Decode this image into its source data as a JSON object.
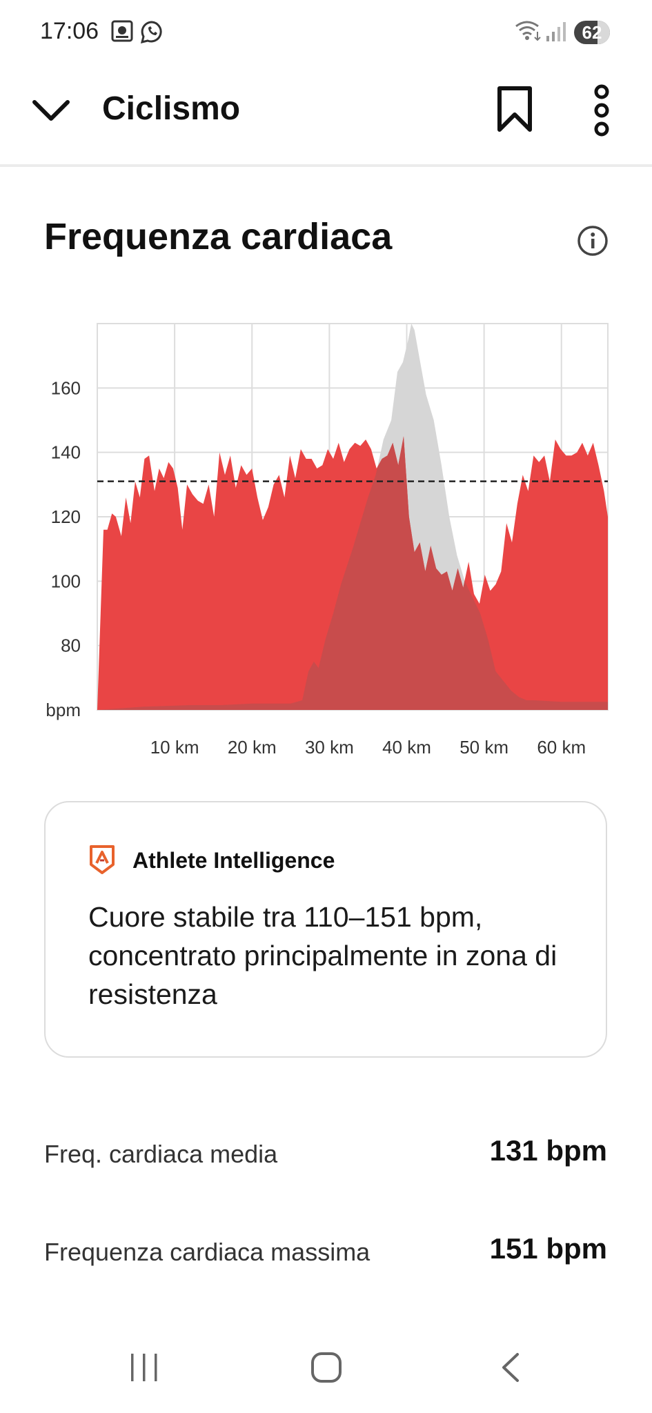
{
  "status_bar": {
    "time": "17:06",
    "battery": "62",
    "icons": [
      "image-notification-icon",
      "whatsapp-icon",
      "wifi-icon",
      "signal-icon",
      "battery-icon"
    ]
  },
  "app_bar": {
    "title": "Ciclismo",
    "icons": [
      "chevron-down-icon",
      "bookmark-icon",
      "more-vertical-icon"
    ]
  },
  "section": {
    "title": "Frequenza cardiaca",
    "info_icon": "info-icon"
  },
  "chart_data": {
    "type": "area",
    "title": "",
    "xlabel": "",
    "ylabel": "bpm",
    "x_unit": "km",
    "xlim": [
      0,
      66
    ],
    "ylim": [
      60,
      180
    ],
    "x_ticks": [
      "10 km",
      "20 km",
      "30 km",
      "40 km",
      "50 km",
      "60 km"
    ],
    "y_ticks": [
      "bpm",
      "80",
      "100",
      "120",
      "140",
      "160"
    ],
    "grid": true,
    "reference_line": {
      "value": 131,
      "style": "dashed"
    },
    "colors": {
      "hr_fill": "#e94545",
      "elevation_fill": "#d6d6d6",
      "overlap_fill": "#c84c4c",
      "grid": "#dddddd",
      "axis_text": "#333333"
    },
    "series": [
      {
        "key": "hr",
        "x": [
          0,
          0.8,
          1.3,
          1.9,
          2.4,
          3.1,
          3.7,
          4.3,
          4.9,
          5.5,
          6.1,
          6.7,
          7.4,
          8.0,
          8.6,
          9.2,
          9.8,
          10.4,
          11.0,
          11.6,
          12.3,
          13.0,
          13.7,
          14.4,
          15.1,
          15.8,
          16.5,
          17.2,
          17.9,
          18.6,
          19.3,
          20.0,
          20.7,
          21.4,
          22.1,
          22.8,
          23.5,
          24.2,
          24.9,
          25.6,
          26.3,
          27.0,
          27.7,
          28.4,
          29.1,
          29.8,
          30.5,
          31.2,
          31.9,
          32.6,
          33.3,
          34.0,
          34.7,
          35.4,
          36.1,
          36.8,
          37.5,
          38.2,
          38.9,
          39.6,
          40.3,
          41.0,
          41.7,
          42.4,
          43.1,
          43.8,
          44.5,
          45.2,
          45.9,
          46.6,
          47.3,
          48.0,
          48.7,
          49.4,
          50.1,
          50.8,
          51.5,
          52.2,
          52.9,
          53.6,
          54.3,
          55.0,
          55.7,
          56.4,
          57.1,
          57.8,
          58.5,
          59.2,
          59.9,
          60.6,
          61.3,
          62.0,
          62.7,
          63.4,
          64.1,
          64.8,
          65.5,
          66.0
        ],
        "values": [
          60,
          116,
          116,
          121,
          120,
          114,
          126,
          118,
          131,
          126,
          138,
          139,
          128,
          135,
          132,
          137,
          135,
          129,
          116,
          130,
          127,
          125,
          124,
          130,
          120,
          140,
          133,
          139,
          129,
          136,
          133,
          135,
          126,
          119,
          123,
          130,
          133,
          126,
          139,
          132,
          141,
          138,
          138,
          135,
          136,
          141,
          138,
          143,
          137,
          141,
          143,
          142,
          144,
          141,
          135,
          138,
          139,
          143,
          136,
          145,
          120,
          109,
          112,
          103,
          111,
          104,
          102,
          103,
          97,
          104,
          98,
          106,
          96,
          93,
          102,
          97,
          99,
          103,
          118,
          112,
          124,
          133,
          128,
          139,
          137,
          139,
          131,
          144,
          141,
          139,
          139,
          140,
          143,
          139,
          143,
          136,
          128,
          120
        ]
      },
      {
        "key": "elevation",
        "x": [
          0,
          6.0,
          12.0,
          16.0,
          20.0,
          25.0,
          26.5,
          27.3,
          28.0,
          28.6,
          29.5,
          30.5,
          31.5,
          33.0,
          34.0,
          35.0,
          36.0,
          37.0,
          38.0,
          38.8,
          39.5,
          40.2,
          40.6,
          41.0,
          41.6,
          42.5,
          43.5,
          44.5,
          45.5,
          46.5,
          47.5,
          48.5,
          49.5,
          50.5,
          51.5,
          52.5,
          53.5,
          54.5,
          55.5,
          56.5,
          60.0,
          66.0
        ],
        "values": [
          60,
          61,
          61.5,
          61.5,
          62,
          62,
          63,
          72,
          75,
          73,
          82,
          90,
          99,
          110,
          118,
          126,
          133,
          144,
          150,
          165,
          168,
          175,
          180,
          178,
          170,
          158,
          150,
          136,
          120,
          108,
          100,
          95,
          90,
          82,
          72,
          69,
          66,
          64,
          63,
          63,
          62.5,
          62.5
        ]
      }
    ]
  },
  "insight_card": {
    "title": "Athlete Intelligence",
    "text": "Cuore stabile tra 110–151 bpm, concentrato principalmente in zona di resistenza",
    "logo_icon": "athlete-intelligence-logo-icon"
  },
  "stats": [
    {
      "label": "Freq. cardiaca media",
      "value": "131 bpm"
    },
    {
      "label": "Frequenza cardiaca massima",
      "value": "151 bpm"
    }
  ],
  "nav_bar": {
    "icons": [
      "recent-apps-icon",
      "home-icon",
      "back-icon"
    ]
  }
}
